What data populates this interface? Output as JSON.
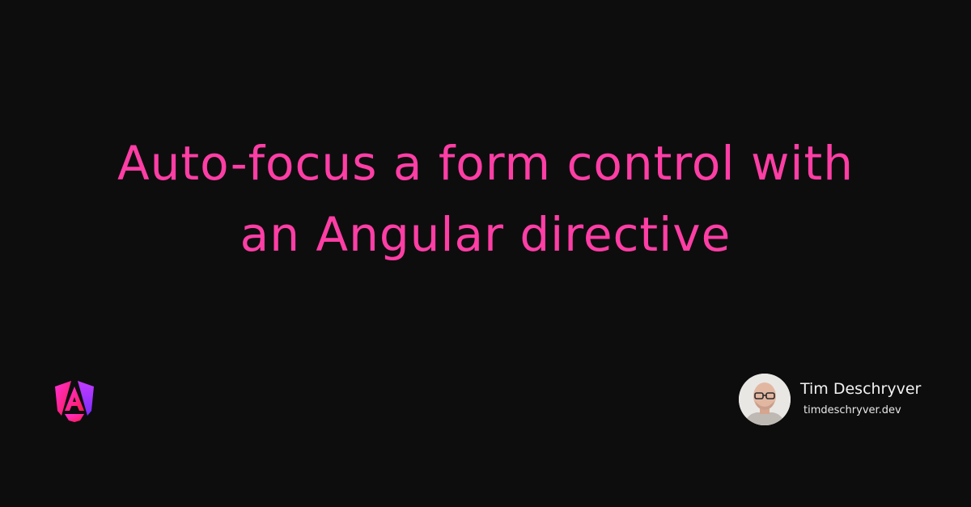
{
  "title": {
    "line1": "Auto-focus a form control with",
    "line2": "an Angular directive"
  },
  "brand": {
    "icon": "angular-logo-icon",
    "accent_color": "#ff3ea5",
    "gradient": [
      "#ff31d9",
      "#ff1a4f",
      "#7b2cff"
    ]
  },
  "author": {
    "name": "Tim Deschryver",
    "site": "timdeschryver.dev",
    "avatar_icon": "avatar-photo"
  },
  "colors": {
    "background": "#0e0d0e",
    "text": "#f2f2f2"
  }
}
